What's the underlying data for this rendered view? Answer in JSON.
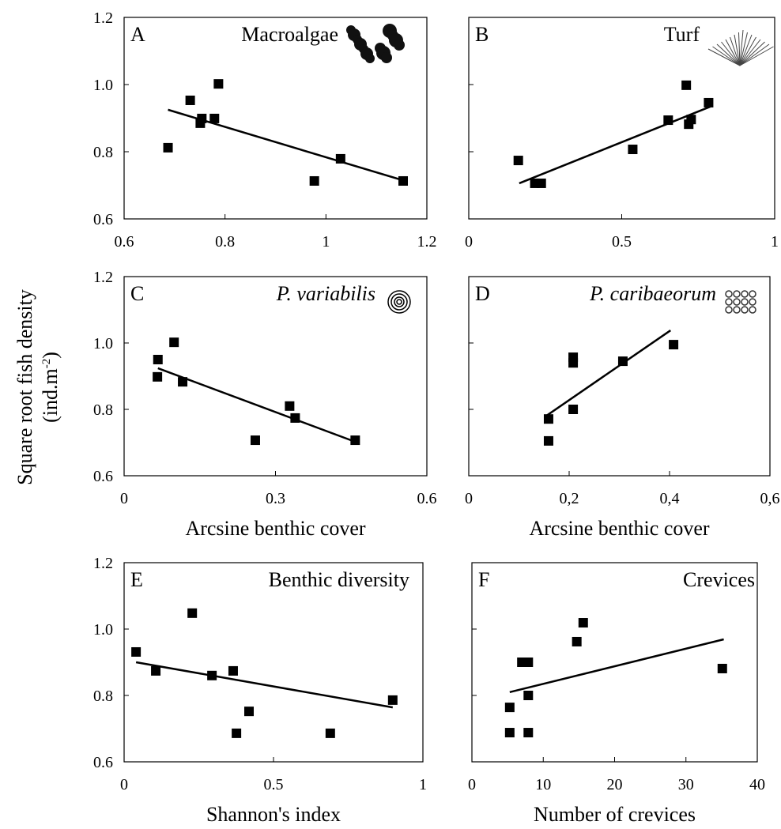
{
  "ylabel": [
    "Square root fish density",
    "(ind.m",
    "-2",
    ")"
  ],
  "chart_data": [
    {
      "type": "scatter",
      "title": "A",
      "name": "Macroalgae",
      "x": [
        0.687,
        0.731,
        0.751,
        0.754,
        0.779,
        0.787,
        0.977,
        1.029,
        1.153
      ],
      "values": [
        0.812,
        0.953,
        0.885,
        0.899,
        0.899,
        1.002,
        0.713,
        0.779,
        0.713
      ],
      "trend": {
        "x": [
          0.687,
          1.161
        ],
        "y": [
          0.925,
          0.711
        ]
      },
      "xlim": [
        0.6,
        1.2
      ],
      "xticks": [
        0.6,
        0.8,
        1,
        1.2
      ],
      "ylim": [
        0.6,
        1.2
      ],
      "yticks": [
        0.6,
        0.8,
        {
          "value": 1,
          "label": "1.0"
        },
        1.2
      ],
      "ytick_labels": true,
      "color": "#000000"
    },
    {
      "type": "scatter",
      "title": "B",
      "name": "Turf",
      "x": [
        0.162,
        0.216,
        0.237,
        0.536,
        0.652,
        0.711,
        0.719,
        0.727,
        0.784
      ],
      "values": [
        0.774,
        0.706,
        0.706,
        0.807,
        0.894,
        0.998,
        0.882,
        0.896,
        0.946
      ],
      "trend": {
        "x": [
          0.165,
          0.789
        ],
        "y": [
          0.706,
          0.934
        ]
      },
      "xlim": [
        0,
        1
      ],
      "xticks": [
        0,
        0.5,
        1
      ],
      "ylim": [
        0.6,
        1.2
      ],
      "yticks": [
        0.6,
        0.8,
        1,
        1.2
      ],
      "ytick_labels": false,
      "color": "#000000"
    },
    {
      "type": "scatter",
      "title": "C",
      "name": "P. variabilis",
      "italic": true,
      "xlabel": "Arcsine benthic cover",
      "x": [
        0.066,
        0.067,
        0.099,
        0.116,
        0.26,
        0.328,
        0.339,
        0.458
      ],
      "values": [
        0.898,
        0.95,
        1.002,
        0.883,
        0.707,
        0.81,
        0.774,
        0.707
      ],
      "trend": {
        "x": [
          0.067,
          0.462
        ],
        "y": [
          0.924,
          0.7
        ]
      },
      "xlim": [
        0,
        0.6
      ],
      "xticks": [
        0,
        0.3,
        0.6
      ],
      "ylim": [
        0.6,
        1.2
      ],
      "yticks": [
        0.6,
        0.8,
        {
          "value": 1,
          "label": "1.0"
        },
        1.2
      ],
      "ytick_labels": true,
      "color": "#000000"
    },
    {
      "type": "scatter",
      "title": "D",
      "name": "P. caribaeorum",
      "italic": true,
      "xlabel": "Arcsine benthic cover",
      "x": [
        0.159,
        0.159,
        0.208,
        0.208,
        0.208,
        0.307,
        0.408
      ],
      "values": [
        0.705,
        0.771,
        0.957,
        0.94,
        0.8,
        0.945,
        0.995
      ],
      "trend": {
        "x": [
          0.153,
          0.402
        ],
        "y": [
          0.779,
          1.038
        ]
      },
      "xlim": [
        0,
        0.6
      ],
      "xticks": [
        0,
        {
          "value": 0.2,
          "label": "0,2"
        },
        {
          "value": 0.4,
          "label": "0,4"
        },
        {
          "value": 0.6,
          "label": "0,6"
        }
      ],
      "ylim": [
        0.6,
        1.2
      ],
      "yticks": [
        0.6,
        0.8,
        1,
        1.2
      ],
      "ytick_labels": false,
      "color": "#000000"
    },
    {
      "type": "scatter",
      "title": "E",
      "name": "Benthic diversity",
      "xlabel": "Shannon's index",
      "x": [
        0.04,
        0.106,
        0.228,
        0.294,
        0.365,
        0.376,
        0.418,
        0.69,
        0.899
      ],
      "values": [
        0.931,
        0.874,
        1.048,
        0.86,
        0.874,
        0.686,
        0.752,
        0.686,
        0.786
      ],
      "trend": {
        "x": [
          0.04,
          0.899
        ],
        "y": [
          0.9,
          0.764
        ]
      },
      "xlim": [
        0,
        1
      ],
      "xticks": [
        0,
        0.5,
        1
      ],
      "ylim": [
        0.6,
        1.2
      ],
      "yticks": [
        0.6,
        0.8,
        {
          "value": 1,
          "label": "1.0"
        },
        1.2
      ],
      "ytick_labels": true,
      "color": "#000000"
    },
    {
      "type": "scatter",
      "title": "F",
      "name": "Crevices",
      "xlabel": "Number of crevices",
      "x": [
        5.3,
        5.3,
        7.0,
        7.9,
        7.9,
        7.9,
        14.7,
        15.6,
        35.1
      ],
      "values": [
        0.764,
        0.688,
        0.9,
        0.9,
        0.8,
        0.688,
        0.962,
        1.019,
        0.881
      ],
      "trend": {
        "x": [
          5.3,
          35.3
        ],
        "y": [
          0.81,
          0.969
        ]
      },
      "xlim": [
        0,
        40
      ],
      "xticks": [
        0,
        10,
        20,
        30,
        40
      ],
      "ylim": [
        0.6,
        1.2
      ],
      "yticks": [
        0.6,
        0.8,
        1,
        1.2
      ],
      "ytick_labels": false,
      "color": "#000000"
    }
  ]
}
